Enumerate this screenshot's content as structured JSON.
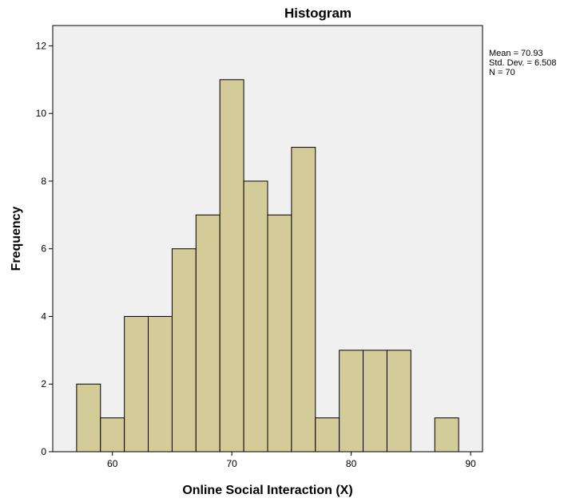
{
  "chart_data": {
    "type": "bar",
    "title": "Histogram",
    "xlabel": "Online Social Interaction (X)",
    "ylabel": "Frequency",
    "bin_edges": [
      57,
      59,
      61,
      63,
      65,
      67,
      69,
      71,
      73,
      75,
      77,
      79,
      81,
      83,
      85,
      87,
      89
    ],
    "values": [
      2,
      1,
      4,
      4,
      6,
      7,
      11,
      8,
      7,
      9,
      1,
      3,
      3,
      3,
      0,
      1
    ],
    "xlim": [
      55,
      91
    ],
    "ylim": [
      0,
      12.6
    ],
    "xticks": [
      60,
      70,
      80,
      90
    ],
    "yticks": [
      0,
      2,
      4,
      6,
      8,
      10,
      12
    ],
    "stats": [
      "Mean = 70.93",
      "Std. Dev. = 6.508",
      "N = 70"
    ],
    "colors": {
      "bar": "#d4cc98",
      "plot_background": "#f0f0f0",
      "frame": "#000000"
    },
    "grid": false
  }
}
